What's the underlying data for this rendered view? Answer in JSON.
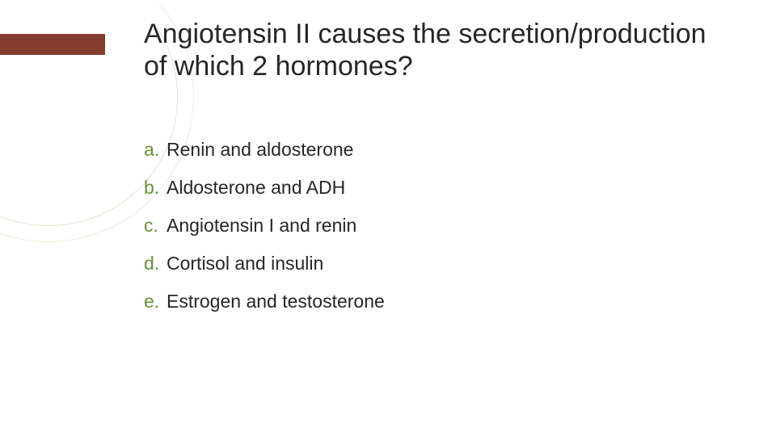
{
  "slide": {
    "title": "Angiotensin II causes the secretion/production of which 2 hormones?",
    "title_fontsize": 34,
    "title_color": "#262626",
    "accent_bar_color": "#843c2f",
    "option_letter_color": "#6b8f3a",
    "option_text_color": "#262626",
    "option_fontsize": 23,
    "background_color": "#ffffff",
    "curve_color": "#e8e2d4",
    "options": [
      {
        "letter": "a.",
        "text": "Renin and aldosterone"
      },
      {
        "letter": "b.",
        "text": "Aldosterone and ADH"
      },
      {
        "letter": "c.",
        "text": "Angiotensin I and renin"
      },
      {
        "letter": "d.",
        "text": "Cortisol and insulin"
      },
      {
        "letter": "e.",
        "text": "Estrogen and testosterone"
      }
    ]
  }
}
